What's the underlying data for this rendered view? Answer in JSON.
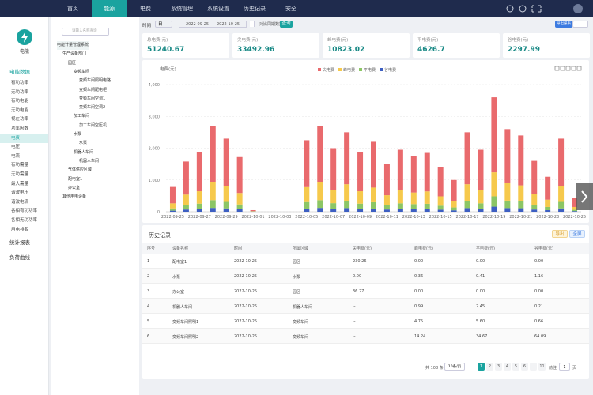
{
  "nav": {
    "items": [
      "首页",
      "能源",
      "电费",
      "系统管理",
      "系统设置",
      "历史记录",
      "安全"
    ],
    "active": 1
  },
  "sidebar": {
    "logo": "电能",
    "groups": [
      {
        "label": "电能数据",
        "items": [
          "有功功率",
          "无功功率",
          "有功电能",
          "无功电能",
          "视在功率",
          "功率因数",
          "电费",
          "电压",
          "电流",
          "有功需量",
          "无功需量",
          "最大需量",
          "谐波电压",
          "谐波电流",
          "各相有功功率",
          "各相无功功率",
          "用电排名"
        ]
      },
      {
        "label": "统计报表",
        "items": []
      },
      {
        "label": "负荷曲线",
        "items": []
      }
    ],
    "active_group": 0,
    "active_item": 6
  },
  "tree": {
    "search_placeholder": "请输入名称查询",
    "nodes": [
      {
        "label": "电能计量管理系统",
        "depth": 0
      },
      {
        "label": "生产设备部门",
        "depth": 1
      },
      {
        "label": "园区",
        "depth": 2
      },
      {
        "label": "变频车间",
        "depth": 3
      },
      {
        "label": "变频车间照明电路",
        "depth": 4
      },
      {
        "label": "变频车间配电柜",
        "depth": 4
      },
      {
        "label": "变频车间空调1",
        "depth": 4
      },
      {
        "label": "变频车间空调2",
        "depth": 4
      },
      {
        "label": "加工车间",
        "depth": 3
      },
      {
        "label": "加工车间空压机",
        "depth": 4
      },
      {
        "label": "水泵",
        "depth": 3
      },
      {
        "label": "水泵",
        "depth": 4
      },
      {
        "label": "机器人车间",
        "depth": 3
      },
      {
        "label": "机器人车间",
        "depth": 4
      },
      {
        "label": "气体供应区域",
        "depth": 2
      },
      {
        "label": "配电室1",
        "depth": 2
      },
      {
        "label": "办公室",
        "depth": 2
      },
      {
        "label": "其他用电设备",
        "depth": 1
      }
    ]
  },
  "filter": {
    "time_label": "时间",
    "granularity": "日",
    "start": "2022-09-25",
    "end": "2022-10-25",
    "checkbox": "对比同期数据",
    "query": "查询",
    "export": "导出报表"
  },
  "cards": [
    {
      "label": "总电费(元)",
      "value": 51240.67
    },
    {
      "label": "尖电费(元)",
      "value": 33492.96
    },
    {
      "label": "峰电费(元)",
      "value": 10823.02
    },
    {
      "label": "平电费(元)",
      "value": 4626.7
    },
    {
      "label": "谷电费(元)",
      "value": 2297.99
    }
  ],
  "chart_data": {
    "type": "stacked-bar",
    "y_label": "电费(元)",
    "categories": [
      "2022-09-25",
      null,
      "2022-09-27",
      null,
      "2022-09-29",
      null,
      "2022-10-01",
      null,
      "2022-10-03",
      null,
      "2022-10-05",
      null,
      "2022-10-07",
      null,
      "2022-10-09",
      null,
      "2022-10-11",
      null,
      "2022-10-13",
      null,
      "2022-10-15",
      null,
      "2022-10-17",
      null,
      "2022-10-19",
      null,
      "2022-10-21",
      null,
      "2022-10-23",
      null,
      "2022-10-25"
    ],
    "series": [
      {
        "name": "尖电费",
        "color": "#e96a6d",
        "values": [
          515,
          1040,
          1225,
          1765,
          1505,
          1130,
          30,
          0,
          0,
          0,
          1475,
          1765,
          1310,
          1635,
          1225,
          1440,
          980,
          1275,
          1145,
          1210,
          915,
          655,
          1635,
          1275,
          2360,
          1705,
          1570,
          1050,
          720,
          1505,
          280
        ]
      },
      {
        "name": "峰电费",
        "color": "#f6c94c",
        "values": [
          160,
          330,
          390,
          570,
          485,
          360,
          10,
          0,
          0,
          0,
          470,
          570,
          420,
          525,
          390,
          460,
          315,
          410,
          365,
          390,
          295,
          210,
          525,
          410,
          755,
          545,
          505,
          335,
          230,
          485,
          90
        ]
      },
      {
        "name": "平电费",
        "color": "#8cc665",
        "values": [
          70,
          140,
          170,
          245,
          205,
          155,
          5,
          0,
          0,
          0,
          205,
          245,
          180,
          225,
          170,
          200,
          135,
          175,
          160,
          165,
          125,
          90,
          225,
          175,
          325,
          235,
          215,
          145,
          100,
          205,
          40
        ]
      },
      {
        "name": "谷电费",
        "color": "#3d5fc2",
        "values": [
          35,
          70,
          85,
          120,
          105,
          75,
          5,
          0,
          0,
          0,
          100,
          120,
          90,
          115,
          85,
          100,
          70,
          90,
          80,
          85,
          65,
          45,
          115,
          90,
          160,
          115,
          110,
          70,
          50,
          105,
          20
        ]
      }
    ],
    "ylim": [
      0,
      4000
    ],
    "yticks": [
      0,
      {
        "value": 1000,
        "label": "1,000"
      },
      {
        "value": 2000,
        "label": "2,000"
      },
      {
        "value": 3000,
        "label": "3,000"
      },
      {
        "value": 4000,
        "label": "4,000"
      }
    ],
    "grid": true
  },
  "table": {
    "title": "历史记录",
    "buttons": [
      "导出",
      "全屏"
    ],
    "columns": [
      "序号",
      "设备名称",
      "时间",
      "所属区域",
      "尖电费(元)",
      "峰电费(元)",
      "平电费(元)",
      "谷电费(元)"
    ],
    "rows": [
      [
        "1",
        "配电室1",
        "2022-10-25",
        "园区",
        "230.26",
        "0.00",
        "0.00",
        "0.00"
      ],
      [
        "2",
        "水泵",
        "2022-10-25",
        "水泵",
        "0.00",
        "0.36",
        "0.41",
        "1.16"
      ],
      [
        "3",
        "办公室",
        "2022-10-25",
        "园区",
        "36.27",
        "0.00",
        "0.00",
        "0.00"
      ],
      [
        "4",
        "机器人车间",
        "2022-10-25",
        "机器人车间",
        "--",
        "0.99",
        "2.45",
        "0.21"
      ],
      [
        "5",
        "变频车间照明1",
        "2022-10-25",
        "变频车间",
        "--",
        "4.75",
        "5.60",
        "0.66"
      ],
      [
        "6",
        "变频车间照明2",
        "2022-10-25",
        "变频车间",
        "--",
        "14.24",
        "34.67",
        "64.09"
      ]
    ]
  },
  "pagination": {
    "total": "共 108 条",
    "page_size": "10条/页",
    "pages": [
      "1",
      "2",
      "3",
      "4",
      "5",
      "6",
      "...",
      "11"
    ],
    "current": 0,
    "goto": "前往",
    "goto_value": "1",
    "unit": "页"
  }
}
